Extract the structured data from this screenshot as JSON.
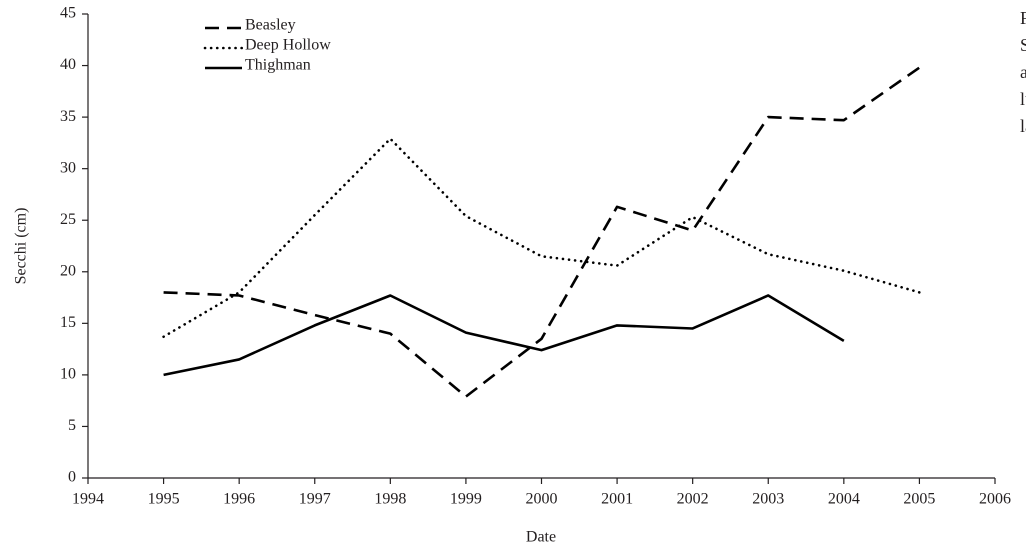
{
  "chart_data": {
    "type": "line",
    "x_label": "Date",
    "y_label": "Secchi (cm)",
    "x": [
      1995,
      1996,
      1997,
      1998,
      1999,
      2000,
      2001,
      2002,
      2003,
      2004,
      2005
    ],
    "series": [
      {
        "name": "Beasley",
        "color": "#000000",
        "style": "dashed",
        "values": [
          18.0,
          17.7,
          15.8,
          14.0,
          7.9,
          13.5,
          26.3,
          24.0,
          35.0,
          34.7,
          39.8
        ]
      },
      {
        "name": "Deep Hollow",
        "color": "#000000",
        "style": "dotted",
        "values": [
          13.7,
          18.0,
          25.5,
          32.9,
          25.4,
          21.5,
          20.6,
          25.3,
          21.7,
          20.1,
          18.0
        ]
      },
      {
        "name": "Thighman",
        "color": "#000000",
        "style": "solid",
        "values": [
          10.0,
          11.5,
          14.8,
          17.7,
          14.1,
          12.4,
          14.8,
          14.5,
          17.7,
          13.3,
          null
        ]
      }
    ],
    "xlim": [
      1994,
      2006
    ],
    "xticks": [
      1994,
      1995,
      1996,
      1997,
      1998,
      1999,
      2000,
      2001,
      2002,
      2003,
      2004,
      2005,
      2006
    ],
    "ylim": [
      0,
      45
    ],
    "yticks": [
      0,
      5,
      10,
      15,
      20,
      25,
      30,
      35,
      40,
      45
    ],
    "grid": false,
    "legend": "upper-left",
    "annotations": [
      "Fig",
      "Sec",
      "age",
      "lua",
      "lak"
    ]
  }
}
